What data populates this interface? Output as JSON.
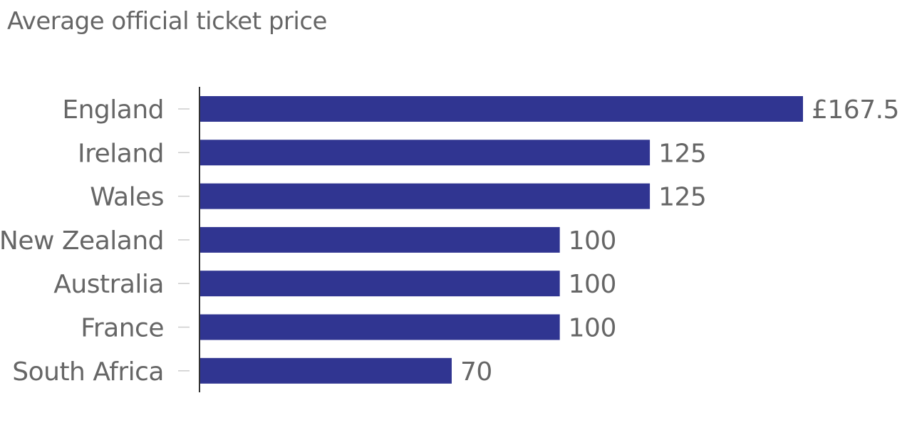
{
  "chart_data": {
    "type": "bar",
    "orientation": "horizontal",
    "title": "Average official ticket price",
    "xlabel": "",
    "ylabel": "",
    "currency_prefix": "£",
    "categories": [
      "England",
      "Ireland",
      "Wales",
      "New Zealand",
      "Australia",
      "France",
      "South Africa"
    ],
    "values": [
      167.5,
      125,
      125,
      100,
      100,
      100,
      70
    ],
    "data_labels": [
      "£167.5",
      "125",
      "125",
      "100",
      "100",
      "100",
      "70"
    ],
    "xlim": [
      0,
      167.5
    ],
    "grid": false,
    "legend": "none",
    "bar_color": "#303591"
  }
}
